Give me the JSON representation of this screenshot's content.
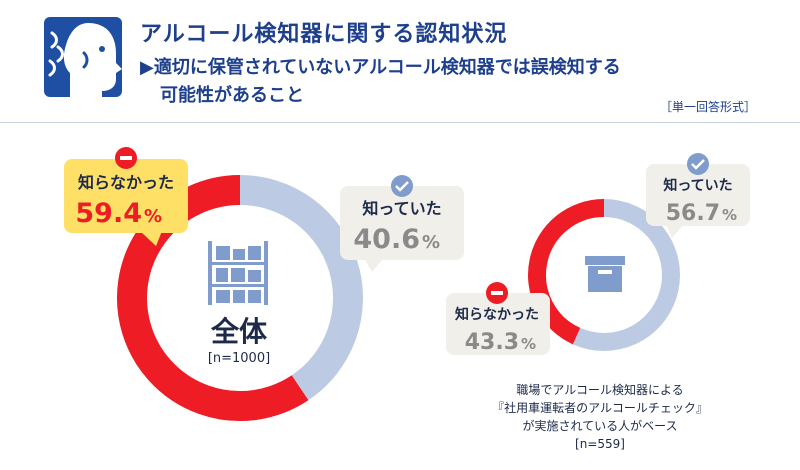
{
  "header": {
    "title": "アルコール検知器に関する認知状況",
    "subtitle_line1": "▶適切に保管されていないアルコール検知器では誤検知する",
    "subtitle_line2": "可能性があること",
    "format_label": "［単一回答形式］"
  },
  "icons": {
    "logo": "person-breathing-icon",
    "overall_center": "shelf-icon",
    "subgroup_center": "storage-box-icon",
    "minus": "minus-circle-icon",
    "check": "check-circle-icon"
  },
  "colors": {
    "not_known": "#ee1c25",
    "known": "#bccbe3",
    "callout_not_known": "#ffe066",
    "callout_known": "#f1efe9",
    "navy": "#1d3f8c"
  },
  "chart_data": [
    {
      "type": "pie",
      "center_label": "全体",
      "n_label": "[n=1000]",
      "slices": [
        {
          "label": "知らなかった",
          "value": 59.4,
          "value_text": "59.4",
          "unit": "%"
        },
        {
          "label": "知っていた",
          "value": 40.6,
          "value_text": "40.6",
          "unit": "%"
        }
      ]
    },
    {
      "type": "pie",
      "caption_lines": [
        "職場でアルコール検知器による",
        "『社用車運転者のアルコールチェック』",
        "が実施されている人がベース"
      ],
      "n_label": "[n=559]",
      "slices": [
        {
          "label": "知らなかった",
          "value": 43.3,
          "value_text": "43.3",
          "unit": "%"
        },
        {
          "label": "知っていた",
          "value": 56.7,
          "value_text": "56.7",
          "unit": "%"
        }
      ]
    }
  ]
}
